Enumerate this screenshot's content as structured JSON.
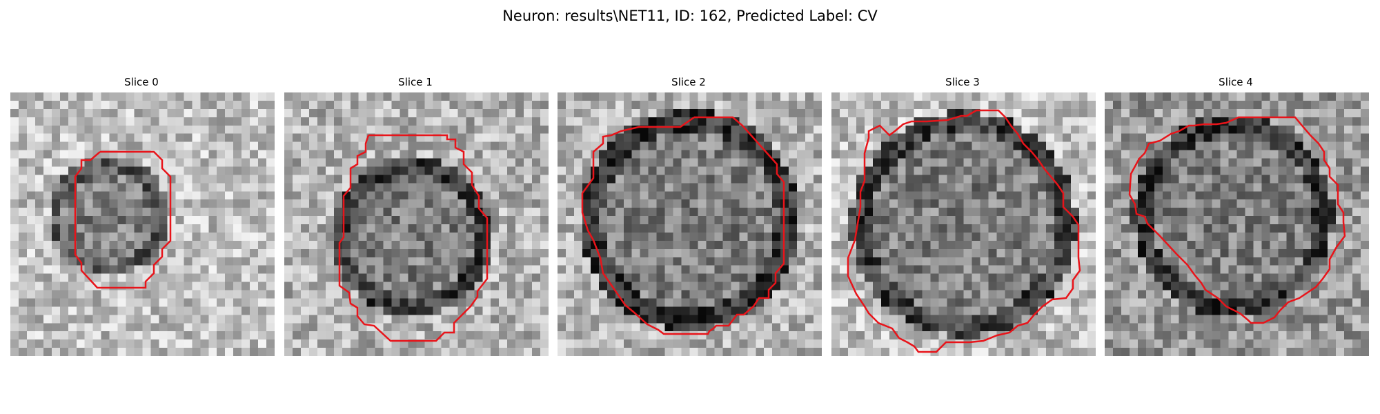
{
  "figure": {
    "suptitle": "Neuron: results\\NET11, ID: 162, Predicted Label: CV"
  },
  "panels": [
    {
      "title": "Slice 0"
    },
    {
      "title": "Slice 1"
    },
    {
      "title": "Slice 2"
    },
    {
      "title": "Slice 3"
    },
    {
      "title": "Slice 4"
    }
  ],
  "style": {
    "contour_color": "#e8141a",
    "colormap": "gray"
  }
}
